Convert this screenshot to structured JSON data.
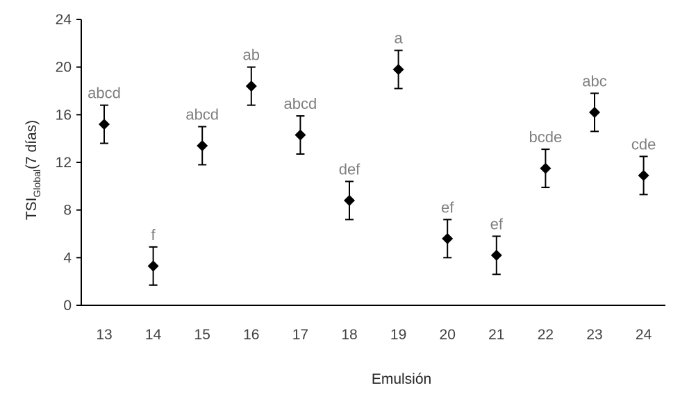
{
  "chart_data": {
    "type": "scatter",
    "xlabel": "Emulsión",
    "ylabel": {
      "main": "TSI",
      "subscript": "Global",
      "suffix": "(7 días)"
    },
    "ylim": [
      0,
      24
    ],
    "yticks": [
      0,
      4,
      8,
      12,
      16,
      20,
      24
    ],
    "grid": false,
    "legend": "none",
    "marker_color": "#000000",
    "group_label_color": "#7f7f7f",
    "points": [
      {
        "x": "13",
        "y": 15.2,
        "err": 1.6,
        "group": "abcd"
      },
      {
        "x": "14",
        "y": 3.3,
        "err": 1.6,
        "group": "f"
      },
      {
        "x": "15",
        "y": 13.4,
        "err": 1.6,
        "group": "abcd"
      },
      {
        "x": "16",
        "y": 18.4,
        "err": 1.6,
        "group": "ab"
      },
      {
        "x": "17",
        "y": 14.3,
        "err": 1.6,
        "group": "abcd"
      },
      {
        "x": "18",
        "y": 8.8,
        "err": 1.6,
        "group": "def"
      },
      {
        "x": "19",
        "y": 19.8,
        "err": 1.6,
        "group": "a"
      },
      {
        "x": "20",
        "y": 5.6,
        "err": 1.6,
        "group": "ef"
      },
      {
        "x": "21",
        "y": 4.2,
        "err": 1.6,
        "group": "ef"
      },
      {
        "x": "22",
        "y": 11.5,
        "err": 1.6,
        "group": "bcde"
      },
      {
        "x": "23",
        "y": 16.2,
        "err": 1.6,
        "group": "abc"
      },
      {
        "x": "24",
        "y": 10.9,
        "err": 1.6,
        "group": "cde"
      }
    ]
  }
}
